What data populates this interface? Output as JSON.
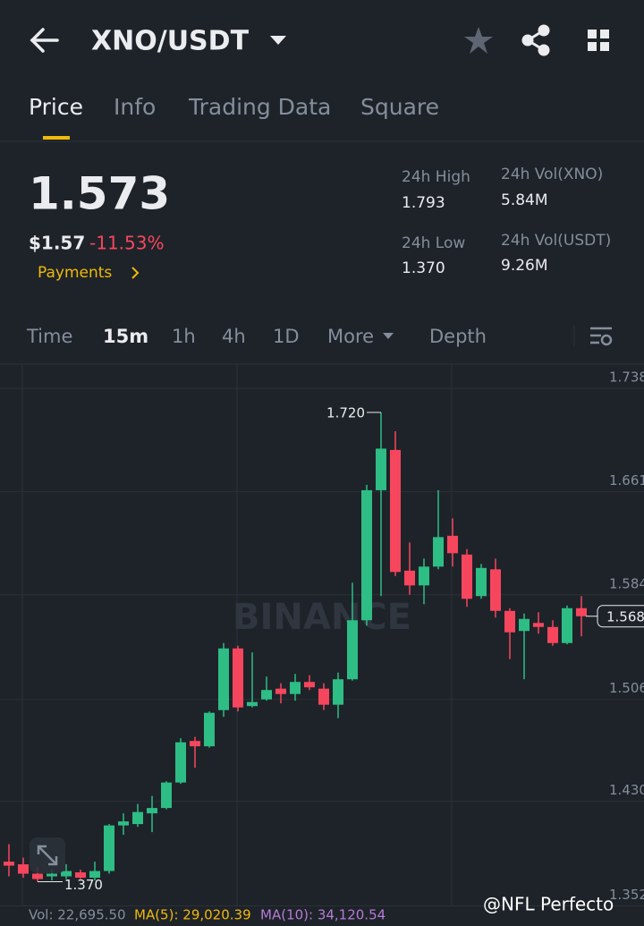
{
  "header": {
    "pair": "XNO/USDT"
  },
  "tabs": [
    "Price",
    "Info",
    "Trading Data",
    "Square"
  ],
  "ticker": {
    "price": "1.573",
    "usd_price": "$1.57",
    "change": "-11.53%",
    "payments": "Payments",
    "high_label": "24h High",
    "high": "1.793",
    "low_label": "24h Low",
    "low": "1.370",
    "vol_base_label": "24h Vol(XNO)",
    "vol_base": "5.84M",
    "vol_quote_label": "24h Vol(USDT)",
    "vol_quote": "9.26M"
  },
  "intervals": [
    "Time",
    "15m",
    "1h",
    "4h",
    "1D",
    "More",
    "Depth"
  ],
  "chart_data": {
    "type": "candlestick",
    "categories": [
      null,
      null,
      null,
      null,
      null,
      null,
      null,
      null,
      null,
      null,
      null,
      null,
      null,
      null,
      null,
      null,
      null,
      null,
      null,
      null,
      null,
      null,
      null,
      null,
      null,
      null,
      null,
      null,
      null,
      null,
      null,
      null,
      null,
      null,
      null,
      null,
      null,
      null,
      null,
      null,
      null
    ],
    "open": [
      1.385,
      1.383,
      1.376,
      1.374,
      1.374,
      1.377,
      1.373,
      1.378,
      1.412,
      1.413,
      1.421,
      1.425,
      1.444,
      1.475,
      1.471,
      1.498,
      1.544,
      1.501,
      1.506,
      1.514,
      1.51,
      1.519,
      1.514,
      1.502,
      1.521,
      1.565,
      1.662,
      1.692,
      1.602,
      1.591,
      1.605,
      1.628,
      1.614,
      1.583,
      1.603,
      1.572,
      1.557,
      1.563,
      1.56,
      1.548,
      1.574
    ],
    "high": [
      1.398,
      1.388,
      1.381,
      1.379,
      1.383,
      1.379,
      1.385,
      1.413,
      1.421,
      1.428,
      1.434,
      1.445,
      1.477,
      1.478,
      1.497,
      1.548,
      1.546,
      1.541,
      1.523,
      1.518,
      1.525,
      1.524,
      1.518,
      1.526,
      1.593,
      1.666,
      1.72,
      1.706,
      1.623,
      1.611,
      1.662,
      1.641,
      1.618,
      1.607,
      1.611,
      1.574,
      1.57,
      1.571,
      1.565,
      1.576,
      1.583
    ],
    "low": [
      1.374,
      1.373,
      1.37,
      1.371,
      1.372,
      1.372,
      1.371,
      1.376,
      1.405,
      1.411,
      1.407,
      1.424,
      1.443,
      1.455,
      1.47,
      1.493,
      1.497,
      1.5,
      1.505,
      1.503,
      1.505,
      1.513,
      1.498,
      1.492,
      1.52,
      1.561,
      1.583,
      1.598,
      1.584,
      1.577,
      1.603,
      1.605,
      1.575,
      1.581,
      1.567,
      1.536,
      1.521,
      1.555,
      1.546,
      1.547,
      1.553
    ],
    "close": [
      1.382,
      1.376,
      1.372,
      1.376,
      1.378,
      1.373,
      1.378,
      1.412,
      1.415,
      1.422,
      1.425,
      1.444,
      1.474,
      1.471,
      1.496,
      1.544,
      1.5,
      1.504,
      1.513,
      1.51,
      1.519,
      1.515,
      1.502,
      1.521,
      1.565,
      1.662,
      1.693,
      1.601,
      1.591,
      1.605,
      1.627,
      1.615,
      1.581,
      1.604,
      1.572,
      1.556,
      1.566,
      1.56,
      1.548,
      1.574,
      1.568
    ],
    "up_color": "#2ebd85",
    "down_color": "#f6465d",
    "ylim": [
      1.35,
      1.756
    ],
    "yticks": [
      1.738,
      1.661,
      1.584,
      1.506,
      {
        "value": 1.43,
        "label": "1.430"
      },
      1.352
    ],
    "grid": true,
    "annotations": [
      {
        "value": 1.72,
        "label": "1.720"
      },
      {
        "value": 1.37,
        "label": "1.370"
      }
    ],
    "last_price": {
      "value": 1.568,
      "label": "1.568"
    }
  },
  "footer": {
    "vol": "Vol: 22,695.50",
    "ma5": "MA(5): 29,020.39",
    "ma10": "MA(10): 34,120.54"
  },
  "watermarks": {
    "brand": "BINANCE",
    "credit": "@NFL Perfecto"
  }
}
